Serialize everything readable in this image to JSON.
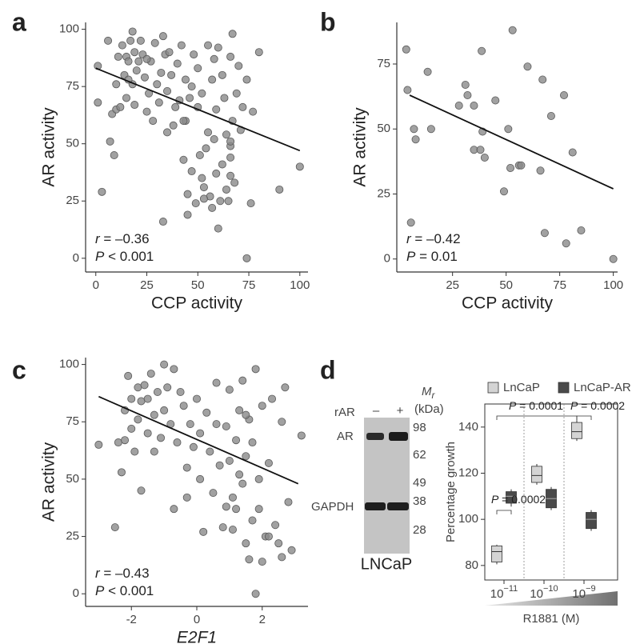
{
  "chart_data": [
    {
      "type": "scatter",
      "panel": "a",
      "xlabel": "CCP activity",
      "ylabel": "AR activity",
      "color": "#8a8a8a",
      "xlim": [
        -5,
        104
      ],
      "ylim": [
        -6,
        103
      ],
      "xticks": [
        0,
        25,
        50,
        75,
        100
      ],
      "yticks": [
        0,
        25,
        50,
        75,
        100
      ],
      "x": [
        1,
        1,
        3,
        6,
        7,
        8,
        9,
        10,
        10,
        11,
        12,
        13,
        14,
        15,
        15,
        16,
        17,
        18,
        18,
        19,
        19,
        20,
        21,
        22,
        23,
        24,
        25,
        26,
        27,
        28,
        29,
        30,
        31,
        32,
        33,
        33,
        34,
        35,
        36,
        37,
        38,
        39,
        40,
        41,
        42,
        43,
        44,
        44,
        45,
        45,
        46,
        47,
        48,
        49,
        50,
        50,
        51,
        52,
        52,
        53,
        54,
        55,
        55,
        56,
        57,
        57,
        58,
        59,
        59,
        60,
        61,
        62,
        62,
        63,
        64,
        65,
        66,
        66,
        67,
        67,
        68,
        69,
        70,
        71,
        72,
        74,
        74,
        76,
        77,
        80,
        90,
        100,
        66,
        58,
        47,
        35,
        25,
        16,
        64,
        60,
        53,
        43,
        66,
        66
      ],
      "values": [
        84,
        68,
        29,
        95,
        51,
        63,
        45,
        65,
        76,
        88,
        66,
        93,
        80,
        70,
        88,
        86,
        95,
        99,
        76,
        67,
        90,
        82,
        86,
        95,
        89,
        79,
        64,
        72,
        86,
        60,
        94,
        76,
        68,
        81,
        16,
        97,
        89,
        73,
        90,
        80,
        58,
        66,
        85,
        69,
        93,
        43,
        78,
        60,
        19,
        28,
        70,
        38,
        89,
        24,
        83,
        66,
        45,
        35,
        72,
        31,
        48,
        93,
        55,
        27,
        22,
        78,
        87,
        37,
        65,
        92,
        25,
        41,
        80,
        70,
        54,
        25,
        44,
        88,
        98,
        60,
        33,
        72,
        84,
        56,
        66,
        78,
        0,
        24,
        64,
        90,
        30,
        40,
        36,
        52,
        75,
        55,
        87,
        78,
        30,
        13,
        26,
        60,
        49,
        51
      ],
      "trend": {
        "x": [
          0,
          100
        ],
        "y": [
          83,
          47
        ]
      },
      "stats": [
        {
          "symbol": "r",
          "text": " = –0.36"
        },
        {
          "symbol": "P",
          "text": " < 0.001"
        }
      ]
    },
    {
      "type": "scatter",
      "panel": "b",
      "xlabel": "CCP activity",
      "ylabel": "AR activity",
      "color": "#8a8a8a",
      "xlim": [
        -1,
        102
      ],
      "ylim": [
        -5,
        91
      ],
      "xticks": [
        25,
        50,
        75,
        100
      ],
      "yticks": [
        0,
        25,
        50,
        75
      ],
      "x": [
        3.4,
        4,
        5.6,
        7,
        7.8,
        13.4,
        15,
        28,
        31,
        32,
        35,
        35,
        38,
        38.6,
        39,
        40,
        45,
        49,
        51,
        52,
        53,
        56,
        57,
        60,
        66,
        67,
        68,
        71,
        77,
        78,
        81,
        85,
        100
      ],
      "values": [
        80.6,
        65,
        14,
        50,
        46,
        72,
        50,
        59,
        67,
        63,
        59,
        42,
        42,
        80,
        49,
        39,
        61,
        26,
        50,
        35,
        88,
        36,
        36,
        74,
        34,
        69,
        10,
        55,
        63,
        6,
        41,
        11,
        0
      ],
      "trend": {
        "x": [
          5,
          100
        ],
        "y": [
          63,
          27
        ]
      },
      "stats": [
        {
          "symbol": "r",
          "text": " = –0.42"
        },
        {
          "symbol": "P",
          "text": " = 0.01"
        }
      ]
    },
    {
      "type": "scatter",
      "panel": "c",
      "xlabel": "E2F1",
      "ylabel": "AR activity",
      "color": "#8a8a8a",
      "xlim": [
        -3.4,
        3.4
      ],
      "ylim": [
        -5.5,
        103
      ],
      "xticks": [
        {
          "value": -2,
          "label": "-2"
        },
        0,
        2
      ],
      "yticks": [
        0,
        25,
        50,
        75,
        100
      ],
      "x": [
        -3,
        -2.5,
        -2.4,
        -2.3,
        -2.2,
        -2.2,
        -2.1,
        -2,
        -2,
        -1.9,
        -1.8,
        -1.8,
        -1.7,
        -1.7,
        -1.6,
        -1.5,
        -1.5,
        -1.4,
        -1.3,
        -1.3,
        -1.2,
        -1.1,
        -1,
        -1,
        -0.9,
        -0.8,
        -0.7,
        -0.7,
        -0.6,
        -0.5,
        -0.4,
        -0.3,
        -0.2,
        -0.1,
        0,
        0.1,
        0.1,
        0.2,
        0.3,
        0.4,
        0.5,
        0.6,
        0.6,
        0.7,
        0.8,
        0.9,
        1,
        1,
        1.1,
        1.1,
        1.2,
        1.2,
        1.3,
        1.3,
        1.4,
        1.4,
        1.5,
        1.5,
        1.6,
        1.6,
        1.7,
        1.7,
        1.8,
        1.8,
        1.9,
        1.9,
        2,
        2,
        2.1,
        2.2,
        2.3,
        2.4,
        2.5,
        2.6,
        2.6,
        2.7,
        2.8,
        2.9,
        3.2,
        -0.3,
        0.9,
        1.5,
        2.2
      ],
      "values": [
        65,
        29,
        66,
        53,
        67,
        80,
        95,
        85,
        72,
        62,
        90,
        76,
        45,
        84,
        91,
        70,
        85,
        96,
        78,
        62,
        88,
        68,
        100,
        80,
        90,
        74,
        98,
        37,
        66,
        88,
        82,
        55,
        74,
        64,
        85,
        70,
        50,
        27,
        79,
        62,
        44,
        92,
        74,
        56,
        29,
        73,
        89,
        58,
        42,
        28,
        67,
        37,
        80,
        52,
        93,
        48,
        22,
        60,
        76,
        15,
        32,
        66,
        98,
        0,
        50,
        37,
        14,
        82,
        25,
        57,
        85,
        30,
        22,
        75,
        16,
        90,
        40,
        19,
        69,
        42,
        38,
        78,
        25
      ],
      "trend": {
        "x": [
          -3,
          3.1
        ],
        "y": [
          86,
          48
        ]
      },
      "stats": [
        {
          "symbol": "r",
          "text": " = –0.43"
        },
        {
          "symbol": "P",
          "text": " < 0.001"
        }
      ]
    },
    {
      "type": "box",
      "panel": "d",
      "xlabel": "R1881 (M)",
      "ylabel": "Percentage growth",
      "ylim": [
        73.7,
        150
      ],
      "yticks": [
        80,
        100,
        120,
        140
      ],
      "categories": [
        {
          "base": "10",
          "exponent": "−11"
        },
        {
          "base": "10",
          "exponent": "−10"
        },
        {
          "base": "10",
          "exponent": "−9"
        }
      ],
      "series": [
        {
          "name": "LnCaP",
          "color": "#d4d4d4",
          "boxes": [
            {
              "min": 80.5,
              "q1": 81.5,
              "median": 86,
              "q3": 88.5,
              "max": 89
            },
            {
              "min": 115,
              "q1": 116,
              "median": 119,
              "q3": 123,
              "max": 124
            },
            {
              "min": 134,
              "q1": 135,
              "median": 138,
              "q3": 142,
              "max": 143
            }
          ]
        },
        {
          "name": "LnCaP-AR",
          "color": "#4a4a4a",
          "boxes": [
            {
              "min": 105.5,
              "q1": 107,
              "median": 110,
              "q3": 112,
              "max": 113
            },
            {
              "min": 104,
              "q1": 105,
              "median": 109,
              "q3": 113,
              "max": 114
            },
            {
              "min": 95,
              "q1": 96,
              "median": 100,
              "q3": 103,
              "max": 104
            }
          ]
        }
      ],
      "comparisons": [
        {
          "stat": "P",
          "text": " = 0.0002"
        },
        {
          "stat": "P",
          "text": " = 0.0001"
        },
        {
          "stat": "P",
          "text": " = 0.0002"
        }
      ]
    }
  ],
  "blot": {
    "treatment": "rAR",
    "lanes": [
      "–",
      "+"
    ],
    "mass": {
      "symbol": "M",
      "subscript": "r"
    },
    "unit": "(kDa)",
    "markers": [
      98,
      62,
      49,
      38,
      28
    ],
    "bands": [
      "AR",
      "GAPDH"
    ],
    "cell_line": "LNCaP"
  }
}
